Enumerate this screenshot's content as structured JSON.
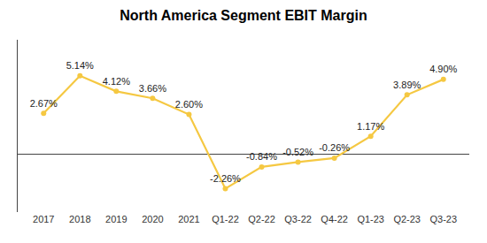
{
  "chart_data": {
    "type": "line",
    "title": "North America Segment EBIT Margin",
    "categories": [
      "2017",
      "2018",
      "2019",
      "2020",
      "2021",
      "Q1-22",
      "Q2-22",
      "Q3-22",
      "Q4-22",
      "Q1-23",
      "Q2-23",
      "Q3-23"
    ],
    "values": [
      2.67,
      5.14,
      4.12,
      3.66,
      2.6,
      -2.26,
      -0.84,
      -0.52,
      -0.26,
      1.17,
      3.89,
      4.9
    ],
    "value_labels": [
      "2.67%",
      "5.14%",
      "4.12%",
      "3.66%",
      "2.60%",
      "-2.26%",
      "-0.84%",
      "-0.52%",
      "-0.26%",
      "1.17%",
      "3.89%",
      "4.90%"
    ],
    "data_labels": true,
    "color": "#F5C842",
    "marker": "circle",
    "ylim": [
      -3.8,
      7.5
    ],
    "grid": false,
    "tick_labels": "x"
  }
}
